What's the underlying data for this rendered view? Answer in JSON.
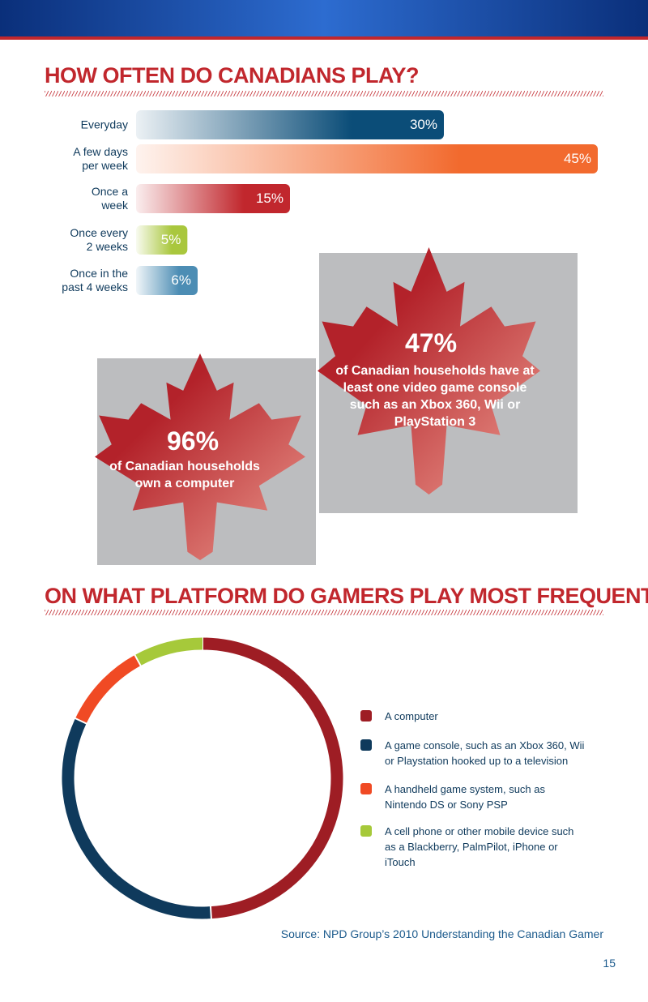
{
  "chart_data": [
    {
      "type": "bar",
      "title": "HOW OFTEN DO CANADIANS PLAY?",
      "categories": [
        "Everyday",
        "A few days per week",
        "Once a week",
        "Once every 2 weeks",
        "Once in the past 4 weeks"
      ],
      "values": [
        30,
        45,
        15,
        5,
        6
      ],
      "value_labels": [
        "30%",
        "45%",
        "15%",
        "5%",
        "6%"
      ],
      "colors": [
        "#0b4d78",
        "#f26a2e",
        "#c1272d",
        "#a9c73d",
        "#4c8db4"
      ]
    },
    {
      "type": "donut",
      "title": "ON WHAT PLATFORM DO GAMERS PLAY MOST FREQUENTLY?",
      "categories": [
        "A computer",
        "A game console, such as an Xbox 360, Wii or Playstation hooked up to a television",
        "A handheld game system, such as Nintendo DS or Sony PSP",
        "A cell phone or other mobile device such as a Blackberry, PalmPilot, iPhone or iTouch"
      ],
      "values": [
        49,
        33,
        10,
        8
      ],
      "colors": [
        "#9e1d24",
        "#0f3a5c",
        "#f04a24",
        "#a6c93a"
      ]
    }
  ],
  "callouts": [
    {
      "headline": "47%",
      "text": "of Canadian households have at least one video game console such as an Xbox 360, Wii or PlayStation 3"
    },
    {
      "headline": "96%",
      "text": "of Canadian households own a computer"
    }
  ],
  "source": "Source: NPD Group’s 2010 Understanding the Canadian Gamer",
  "page_number": "15"
}
